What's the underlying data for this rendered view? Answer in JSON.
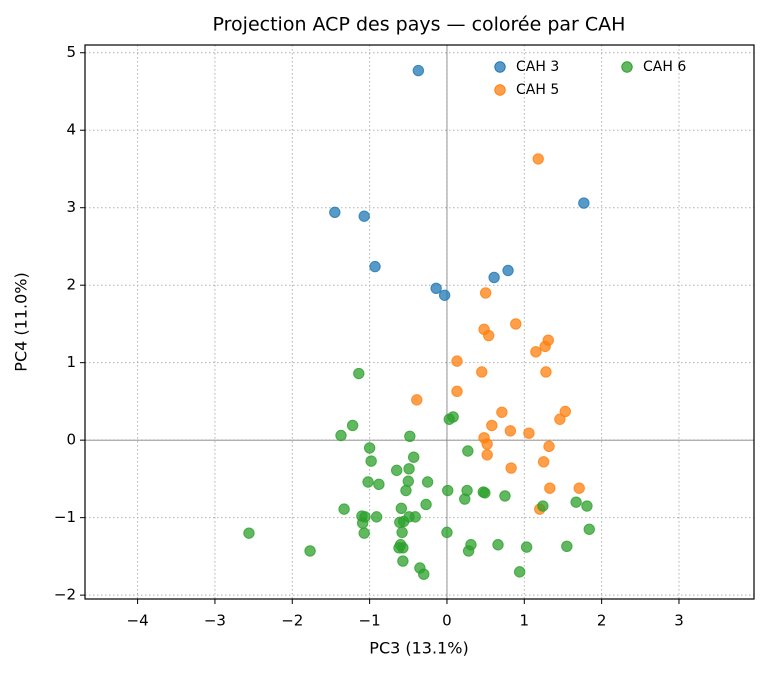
{
  "chart_data": {
    "type": "scatter",
    "title": "Projection ACP des pays — colorée par CAH",
    "x_label": "PC3 (13.1%)",
    "y_label": "PC4 (11.0%)",
    "xlim": [
      -4.68,
      3.97
    ],
    "ylim": [
      -2.05,
      5.1
    ],
    "xticks": [
      {
        "value": -4,
        "label": "−4"
      },
      {
        "value": -3,
        "label": "−3"
      },
      {
        "value": -2,
        "label": "−2"
      },
      {
        "value": -1,
        "label": "−1"
      },
      0,
      1,
      2,
      3
    ],
    "yticks": [
      {
        "value": -2,
        "label": "−2"
      },
      {
        "value": -1,
        "label": "−1"
      },
      0,
      1,
      2,
      3,
      4,
      5
    ],
    "grid": true,
    "zero_lines": true,
    "legend": "upper right",
    "legend_columns": 2,
    "series": [
      {
        "name": "CAH 3",
        "color": "#1f77b4",
        "x": [
          -0.37,
          -1.45,
          -1.07,
          -0.93,
          -0.14,
          -0.03,
          0.61,
          0.79,
          1.77
        ],
        "values": [
          4.77,
          2.94,
          2.89,
          2.24,
          1.96,
          1.87,
          2.1,
          2.19,
          3.06
        ]
      },
      {
        "name": "CAH 5",
        "color": "#ff7f0e",
        "x": [
          1.18,
          0.5,
          0.89,
          0.48,
          0.54,
          1.31,
          1.27,
          1.15,
          0.13,
          0.45,
          1.28,
          0.13,
          -0.39,
          1.53,
          1.46,
          0.71,
          0.58,
          0.82,
          1.06,
          0.48,
          0.52,
          1.32,
          0.52,
          1.25,
          0.83,
          1.33,
          1.71,
          1.2
        ],
        "values": [
          3.63,
          1.9,
          1.5,
          1.43,
          1.35,
          1.29,
          1.21,
          1.14,
          1.02,
          0.88,
          0.88,
          0.63,
          0.52,
          0.37,
          0.27,
          0.36,
          0.19,
          0.12,
          0.09,
          0.03,
          -0.05,
          -0.08,
          -0.19,
          -0.28,
          -0.36,
          -0.62,
          -0.62,
          -0.89
        ]
      },
      {
        "name": "CAH 6",
        "color": "#2ca02c",
        "x": [
          -1.14,
          -1.22,
          -1.37,
          -0.48,
          0.03,
          0.08,
          -1.0,
          0.27,
          -0.43,
          -0.98,
          -0.49,
          -0.65,
          -0.5,
          -0.25,
          -0.88,
          -1.02,
          -0.53,
          0.01,
          0.26,
          0.47,
          0.49,
          0.23,
          0.75,
          -0.27,
          1.67,
          1.81,
          1.24,
          -1.33,
          -0.59,
          -0.49,
          -0.41,
          -0.91,
          -1.1,
          -1.06,
          -0.56,
          -0.61,
          -1.09,
          -2.56,
          -1.07,
          -0.58,
          0.0,
          1.84,
          0.31,
          0.28,
          0.66,
          1.03,
          1.55,
          -0.6,
          -0.57,
          -0.62,
          -1.77,
          -0.57,
          -0.35,
          -0.3,
          0.94
        ],
        "values": [
          0.86,
          0.19,
          0.06,
          0.05,
          0.27,
          0.3,
          -0.1,
          -0.14,
          -0.22,
          -0.27,
          -0.37,
          -0.39,
          -0.53,
          -0.54,
          -0.57,
          -0.54,
          -0.65,
          -0.65,
          -0.65,
          -0.67,
          -0.68,
          -0.76,
          -0.72,
          -0.83,
          -0.8,
          -0.85,
          -0.85,
          -0.89,
          -0.88,
          -0.99,
          -0.99,
          -0.99,
          -0.98,
          -0.99,
          -1.05,
          -1.06,
          -1.07,
          -1.2,
          -1.2,
          -1.19,
          -1.19,
          -1.15,
          -1.35,
          -1.43,
          -1.35,
          -1.38,
          -1.37,
          -1.35,
          -1.39,
          -1.39,
          -1.43,
          -1.56,
          -1.65,
          -1.73,
          -1.7
        ]
      }
    ]
  }
}
